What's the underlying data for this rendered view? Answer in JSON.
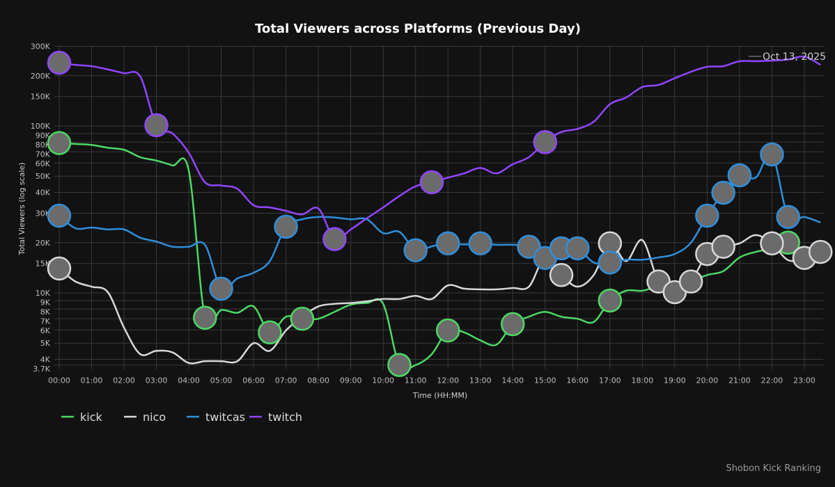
{
  "chart_data": {
    "type": "line",
    "title": "Total Viewers across Platforms (Previous Day)",
    "xlabel": "Time (HH:MM)",
    "ylabel": "Total Viewers (log scale)",
    "yscale": "log",
    "ylim": [
      3700,
      300000
    ],
    "xlim_hours": [
      0,
      23.5
    ],
    "annotation": "Oct 13, 2025",
    "footer": "Shobon Kick Ranking",
    "legend_position": "bottom-left",
    "grid": true,
    "x_ticks": [
      "00:00",
      "01:00",
      "02:00",
      "03:00",
      "04:00",
      "05:00",
      "06:00",
      "07:00",
      "08:00",
      "09:00",
      "10:00",
      "11:00",
      "12:00",
      "13:00",
      "14:00",
      "15:00",
      "16:00",
      "17:00",
      "18:00",
      "19:00",
      "20:00",
      "21:00",
      "22:00",
      "23:00"
    ],
    "y_ticks": [
      {
        "v": 300000,
        "label": "300K"
      },
      {
        "v": 200000,
        "label": "200K"
      },
      {
        "v": 150000,
        "label": "150K"
      },
      {
        "v": 100000,
        "label": "100K"
      },
      {
        "v": 90000,
        "label": "90K"
      },
      {
        "v": 80000,
        "label": "80K"
      },
      {
        "v": 70000,
        "label": "70K"
      },
      {
        "v": 60000,
        "label": "60K"
      },
      {
        "v": 50000,
        "label": "50K"
      },
      {
        "v": 40000,
        "label": "40K"
      },
      {
        "v": 30000,
        "label": "30K"
      },
      {
        "v": 20000,
        "label": "20K"
      },
      {
        "v": 15000,
        "label": "15K"
      },
      {
        "v": 10000,
        "label": "10K"
      },
      {
        "v": 9000,
        "label": "9K"
      },
      {
        "v": 8000,
        "label": "8K"
      },
      {
        "v": 7000,
        "label": "7K"
      },
      {
        "v": 6000,
        "label": "6K"
      },
      {
        "v": 5000,
        "label": "5K"
      },
      {
        "v": 4000,
        "label": "4K"
      },
      {
        "v": 3700,
        "label": "3.7K"
      }
    ],
    "x_step_hours": 0.5,
    "series": [
      {
        "name": "kick",
        "color": "#4cd964",
        "values": [
          79000,
          78000,
          77000,
          74000,
          72000,
          65000,
          62000,
          58000,
          54000,
          7100,
          7900,
          7600,
          8300,
          5800,
          7200,
          7000,
          7000,
          7700,
          8500,
          8700,
          8600,
          3700,
          3700,
          4300,
          5960,
          5800,
          5200,
          4900,
          6500,
          7200,
          7700,
          7200,
          7000,
          6700,
          9000,
          10300,
          10300,
          10900,
          10900,
          11700,
          12800,
          13500,
          16300,
          17600,
          18500,
          20000,
          null,
          null
        ],
        "avatars": [
          0,
          4.5,
          6.5,
          7.5,
          10.5,
          12,
          14,
          17,
          22.5
        ]
      },
      {
        "name": "nico",
        "color": "#d9d9d9",
        "values": [
          14000,
          11700,
          10900,
          10100,
          6200,
          4300,
          4500,
          4400,
          3800,
          3900,
          3900,
          3900,
          5000,
          4500,
          5960,
          7200,
          8300,
          8600,
          8700,
          8900,
          9200,
          9200,
          9600,
          9200,
          11100,
          10600,
          10500,
          10500,
          10700,
          10900,
          16300,
          12800,
          10900,
          12800,
          19800,
          15500,
          20700,
          11700,
          10100,
          11700,
          17100,
          18900,
          19800,
          22200,
          19800,
          15700,
          16200,
          17600
        ],
        "avatars": [
          0,
          15.5,
          17,
          18.5,
          19,
          19.5,
          20,
          20.5,
          22,
          23,
          23.5
        ]
      },
      {
        "name": "twitcas",
        "color": "#2f8fdc",
        "values": [
          29000,
          24400,
          24600,
          24000,
          24000,
          21400,
          20300,
          18900,
          18900,
          19400,
          10600,
          12200,
          13200,
          15500,
          24900,
          27600,
          28500,
          28300,
          27600,
          27600,
          22800,
          23200,
          18000,
          19000,
          19800,
          19500,
          19800,
          19400,
          19400,
          18900,
          16200,
          18500,
          18500,
          15200,
          15200,
          15800,
          15800,
          16300,
          17100,
          20000,
          29000,
          39800,
          50600,
          49000,
          67500,
          28500,
          28500,
          26400
        ],
        "avatars": [
          0,
          5,
          7,
          11,
          12,
          13,
          14.5,
          15,
          15.5,
          16,
          17,
          20,
          20.5,
          21,
          22,
          22.5
        ]
      },
      {
        "name": "twitch",
        "color": "#9146ff",
        "values": [
          239000,
          232000,
          228000,
          218000,
          207000,
          198000,
          101000,
          90000,
          69000,
          46000,
          44000,
          42000,
          33500,
          32500,
          31000,
          29500,
          32000,
          21000,
          24000,
          28000,
          32500,
          38000,
          43500,
          46000,
          49000,
          52000,
          56000,
          52000,
          59000,
          65000,
          80000,
          92000,
          96000,
          106000,
          135000,
          148000,
          171000,
          176000,
          193000,
          211000,
          226000,
          228000,
          244000,
          244000,
          246000,
          250000,
          260000,
          232000
        ],
        "avatars": [
          0,
          3,
          8.5,
          11.5,
          15
        ]
      }
    ]
  }
}
